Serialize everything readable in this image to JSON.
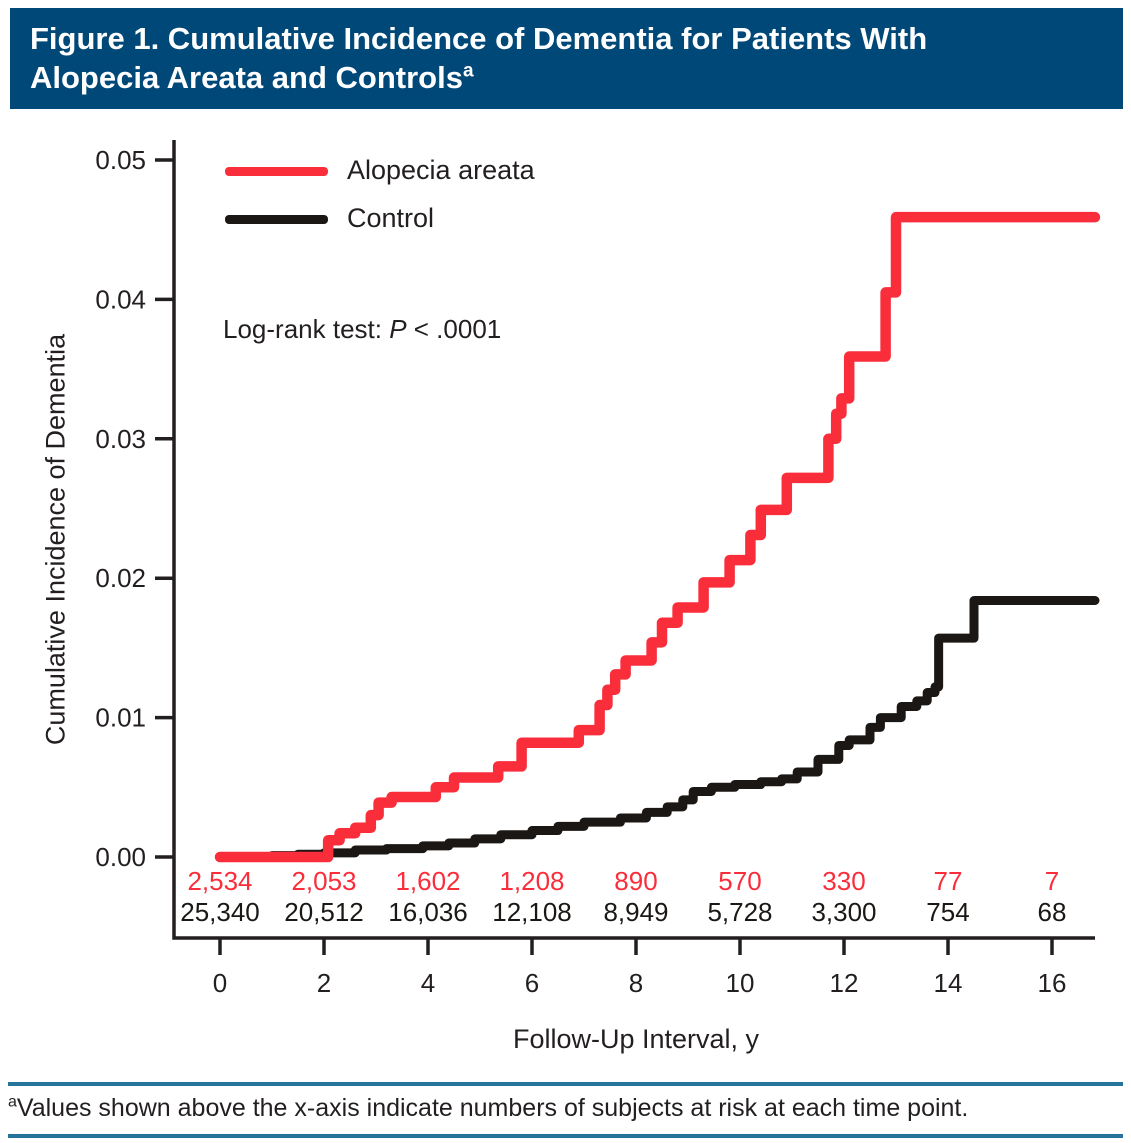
{
  "header": {
    "title_line1": "Figure 1. Cumulative Incidence of Dementia for Patients With",
    "title_line2": "Alopecia Areata and Controls",
    "superscript": "a",
    "background_color": "#004877"
  },
  "legend": [
    {
      "label": "Alopecia areata",
      "color": "#fa2d3b"
    },
    {
      "label": "Control",
      "color": "#1a1714"
    }
  ],
  "annotation": {
    "prefix": "Log-rank test: ",
    "p": "P",
    "suffix": " < .0001"
  },
  "footnote": {
    "superscript": "a",
    "text": "Values shown above the x-axis indicate numbers of subjects at risk at each time point."
  },
  "chart_data": {
    "type": "line",
    "subtype": "kaplan-meier-step",
    "title": "",
    "xlabel": "Follow-Up Interval, y",
    "ylabel": "Cumulative Incidence of Dementia",
    "xlim": [
      0,
      16.83
    ],
    "ylim": [
      0,
      0.05
    ],
    "xticks": [
      0,
      2,
      4,
      6,
      8,
      10,
      12,
      14,
      16
    ],
    "yticks": [
      "0.00",
      "0.01",
      "0.02",
      "0.03",
      "0.04",
      "0.05"
    ],
    "grid": false,
    "legend_position": "top-left",
    "annotation_text": "Log-rank test: P < .0001",
    "series": [
      {
        "name": "Alopecia areata",
        "color": "#fa2d3b",
        "line_width": 10.5,
        "steps": [
          [
            0,
            0
          ],
          [
            2.08,
            0.0012
          ],
          [
            2.3,
            0.0017
          ],
          [
            2.6,
            0.0021
          ],
          [
            2.9,
            0.003
          ],
          [
            3.05,
            0.0039
          ],
          [
            3.3,
            0.0043
          ],
          [
            4.15,
            0.005
          ],
          [
            4.5,
            0.0057
          ],
          [
            5.35,
            0.0065
          ],
          [
            5.8,
            0.0082
          ],
          [
            6.9,
            0.0091
          ],
          [
            7.3,
            0.0109
          ],
          [
            7.45,
            0.012
          ],
          [
            7.6,
            0.0131
          ],
          [
            7.8,
            0.0141
          ],
          [
            8.3,
            0.0154
          ],
          [
            8.5,
            0.0168
          ],
          [
            8.8,
            0.0179
          ],
          [
            9.3,
            0.0197
          ],
          [
            9.8,
            0.0213
          ],
          [
            10.2,
            0.0231
          ],
          [
            10.4,
            0.0249
          ],
          [
            10.9,
            0.0272
          ],
          [
            11.7,
            0.03
          ],
          [
            11.85,
            0.0318
          ],
          [
            11.95,
            0.0329
          ],
          [
            12.1,
            0.0359
          ],
          [
            12.8,
            0.0405
          ],
          [
            13.0,
            0.0459
          ]
        ]
      },
      {
        "name": "Control",
        "color": "#1a1714",
        "line_width": 9,
        "steps": [
          [
            0,
            0
          ],
          [
            1.0,
            0.0001
          ],
          [
            1.5,
            0.0002
          ],
          [
            2.0,
            0.0003
          ],
          [
            2.6,
            0.0005
          ],
          [
            3.2,
            0.0006
          ],
          [
            3.9,
            0.0008
          ],
          [
            4.4,
            0.001
          ],
          [
            4.9,
            0.0013
          ],
          [
            5.4,
            0.0016
          ],
          [
            6.0,
            0.0019
          ],
          [
            6.5,
            0.0022
          ],
          [
            7.0,
            0.0025
          ],
          [
            7.7,
            0.0028
          ],
          [
            8.2,
            0.0032
          ],
          [
            8.6,
            0.0036
          ],
          [
            8.9,
            0.0041
          ],
          [
            9.1,
            0.0047
          ],
          [
            9.45,
            0.005
          ],
          [
            9.9,
            0.0052
          ],
          [
            10.4,
            0.0054
          ],
          [
            10.8,
            0.0056
          ],
          [
            11.1,
            0.0061
          ],
          [
            11.5,
            0.007
          ],
          [
            11.9,
            0.008
          ],
          [
            12.1,
            0.0084
          ],
          [
            12.5,
            0.0093
          ],
          [
            12.7,
            0.01
          ],
          [
            13.1,
            0.0108
          ],
          [
            13.4,
            0.0112
          ],
          [
            13.6,
            0.0118
          ],
          [
            13.75,
            0.0122
          ],
          [
            13.82,
            0.0157
          ],
          [
            14.5,
            0.0184
          ]
        ]
      }
    ],
    "at_risk": {
      "time_points": [
        0,
        2,
        4,
        6,
        8,
        10,
        12,
        14,
        16
      ],
      "rows": [
        {
          "name": "Alopecia areata",
          "color": "#fa2d3b",
          "values": [
            "2,534",
            "2,053",
            "1,602",
            "1,208",
            "890",
            "570",
            "330",
            "77",
            "7"
          ]
        },
        {
          "name": "Control",
          "color": "#1a1714",
          "values": [
            "25,340",
            "20,512",
            "16,036",
            "12,108",
            "8,949",
            "5,728",
            "3,300",
            "754",
            "68"
          ]
        }
      ]
    }
  }
}
